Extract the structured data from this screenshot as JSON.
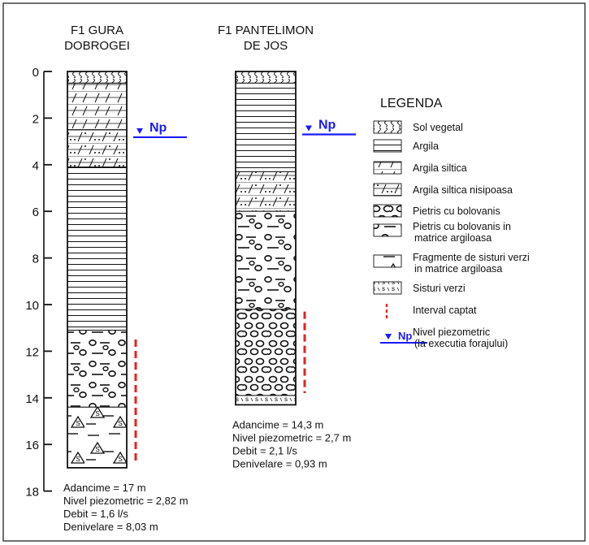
{
  "wells": [
    {
      "title_line1": "F1 GURA",
      "title_line2": "DOBROGEI",
      "depth_total_m": 17,
      "np_depth_m": 2.82,
      "capture_interval_m": [
        11.5,
        16.8
      ],
      "layers": [
        {
          "from": 0,
          "to": 0.5,
          "type": "sol_vegetal"
        },
        {
          "from": 0.5,
          "to": 2.5,
          "type": "argila_siltica"
        },
        {
          "from": 2.5,
          "to": 4.1,
          "type": "argila_siltica_nisipoasa"
        },
        {
          "from": 4.1,
          "to": 11.1,
          "type": "argila"
        },
        {
          "from": 11.1,
          "to": 14.4,
          "type": "pietris_matrice"
        },
        {
          "from": 14.4,
          "to": 17,
          "type": "fragmente_sisturi"
        }
      ],
      "stats": {
        "adancime": "Adancime = 17 m",
        "nivel": "Nivel piezometric = 2,82 m",
        "debit": "Debit = 1,6 l/s",
        "denivelare": "Denivelare = 8,03 m"
      }
    },
    {
      "title_line1": "F1 PANTELIMON",
      "title_line2": "DE JOS",
      "depth_total_m": 14.3,
      "np_depth_m": 2.7,
      "capture_interval_m": [
        10.3,
        13.8
      ],
      "layers": [
        {
          "from": 0,
          "to": 0.5,
          "type": "sol_vegetal"
        },
        {
          "from": 0.5,
          "to": 4.3,
          "type": "argila"
        },
        {
          "from": 4.3,
          "to": 6.0,
          "type": "argila_siltica_nisipoasa"
        },
        {
          "from": 6.0,
          "to": 10.2,
          "type": "pietris_matrice"
        },
        {
          "from": 10.2,
          "to": 13.9,
          "type": "pietris"
        },
        {
          "from": 13.9,
          "to": 14.3,
          "type": "sisturi_verzi"
        }
      ],
      "stats": {
        "adancime": "Adancime = 14,3 m",
        "nivel": "Nivel piezometric = 2,7 m",
        "debit": "Debit = 2,1 l/s",
        "denivelare": "Denivelare = 0,93 m"
      }
    }
  ],
  "axis": {
    "depth_ticks": [
      "0",
      "2",
      "4",
      "6",
      "8",
      "10",
      "12",
      "14",
      "16",
      "18"
    ]
  },
  "np_label": "Np",
  "legend": {
    "title": "LEGENDA",
    "items": [
      {
        "type": "sol_vegetal",
        "label1": "Sol vegetal",
        "label2": ""
      },
      {
        "type": "argila",
        "label1": "Argila",
        "label2": ""
      },
      {
        "type": "argila_siltica",
        "label1": "Argila siltica",
        "label2": ""
      },
      {
        "type": "argila_siltica_nisipoasa",
        "label1": "Argila siltica nisipoasa",
        "label2": ""
      },
      {
        "type": "pietris",
        "label1": "Pietris cu bolovanis",
        "label2": ""
      },
      {
        "type": "pietris_matrice",
        "label1": "Pietris cu bolovanis in",
        "label2": "matrice argiloasa"
      },
      {
        "type": "fragmente_sisturi",
        "label1": "Fragmente de sisturi verzi",
        "label2": "in matrice argiloasa"
      },
      {
        "type": "sisturi_verzi",
        "label1": "Sisturi verzi",
        "label2": ""
      },
      {
        "type": "interval",
        "label1": "Interval captat",
        "label2": ""
      },
      {
        "type": "np",
        "label1": "Nivel piezometric",
        "label2": "(la executia forajului)"
      }
    ]
  },
  "colors": {
    "np_line": "#1a1aff",
    "interval": "#e8201c",
    "ink": "#111111"
  }
}
